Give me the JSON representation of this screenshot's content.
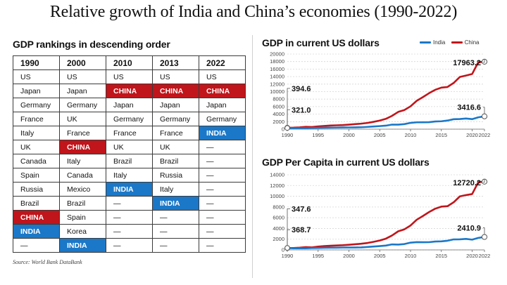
{
  "title": "Relative growth of India and China’s economies (1990-2022)",
  "colors": {
    "china": "#c0151b",
    "india": "#1b78c8"
  },
  "rankings": {
    "title": "GDP rankings in descending order",
    "columns": [
      "1990",
      "2000",
      "2010",
      "2013",
      "2022"
    ],
    "rows": [
      [
        "US",
        "US",
        "US",
        "US",
        "US"
      ],
      [
        "Japan",
        "Japan",
        "CHINA",
        "CHINA",
        "CHINA"
      ],
      [
        "Germany",
        "Germany",
        "Japan",
        "Japan",
        "Japan"
      ],
      [
        "France",
        "UK",
        "Germany",
        "Germany",
        "Germany"
      ],
      [
        "Italy",
        "France",
        "France",
        "France",
        "INDIA"
      ],
      [
        "UK",
        "CHINA",
        "UK",
        "UK",
        "—"
      ],
      [
        "Canada",
        "Italy",
        "Brazil",
        "Brazil",
        "—"
      ],
      [
        "Spain",
        "Canada",
        "Italy",
        "Russia",
        "—"
      ],
      [
        "Russia",
        "Mexico",
        "INDIA",
        "Italy",
        "—"
      ],
      [
        "Brazil",
        "Brazil",
        "—",
        "INDIA",
        "—"
      ],
      [
        "CHINA",
        "Spain",
        "—",
        "—",
        "—"
      ],
      [
        "INDIA",
        "Korea",
        "—",
        "—",
        "—"
      ],
      [
        "—",
        "INDIA",
        "—",
        "—",
        "—"
      ]
    ],
    "source": "Source: World Bank DataBank"
  },
  "legend": {
    "india": "India",
    "china": "China"
  },
  "chart_data": [
    {
      "type": "line",
      "title": "GDP in current US dollars",
      "xlim": [
        1990,
        2022
      ],
      "ylim": [
        0,
        20000
      ],
      "xticks": [
        "1990",
        "1995",
        "2000",
        "2005",
        "2010",
        "2015",
        "2020",
        "2022"
      ],
      "yticks": [
        "0",
        "2000",
        "4000",
        "6000",
        "8000",
        "10000",
        "12000",
        "14000",
        "16000",
        "18000",
        "20000"
      ],
      "x": [
        1990,
        1991,
        1992,
        1993,
        1994,
        1995,
        1996,
        1997,
        1998,
        1999,
        2000,
        2001,
        2002,
        2003,
        2004,
        2005,
        2006,
        2007,
        2008,
        2009,
        2010,
        2011,
        2012,
        2013,
        2014,
        2015,
        2016,
        2017,
        2018,
        2019,
        2020,
        2021,
        2022
      ],
      "series": [
        {
          "name": "China",
          "values": [
            394.6,
            413,
            492,
            617,
            564,
            734,
            864,
            961,
            1029,
            1094,
            1211,
            1339,
            1471,
            1660,
            1955,
            2286,
            2752,
            3550,
            4594,
            5102,
            6087,
            7552,
            8532,
            9570,
            10476,
            11062,
            11233,
            12310,
            13895,
            14280,
            14688,
            17820,
            17963.2
          ]
        },
        {
          "name": "India",
          "values": [
            321.0,
            270,
            288,
            279,
            327,
            360,
            392,
            415,
            421,
            458,
            468,
            485,
            515,
            607,
            709,
            820,
            940,
            1217,
            1199,
            1342,
            1676,
            1823,
            1828,
            1857,
            2039,
            2104,
            2295,
            2651,
            2703,
            2836,
            2672,
            3150,
            3416.6
          ]
        }
      ],
      "annotations": [
        {
          "label": "394.6",
          "series": "China",
          "x": 1990
        },
        {
          "label": "321.0",
          "series": "India",
          "x": 1990
        },
        {
          "label": "17963.2",
          "series": "China",
          "x": 2022
        },
        {
          "label": "3416.6",
          "series": "India",
          "x": 2022
        }
      ]
    },
    {
      "type": "line",
      "title": "GDP Per Capita in current US dollars",
      "xlim": [
        1990,
        2022
      ],
      "ylim": [
        0,
        14000
      ],
      "xticks": [
        "1990",
        "1995",
        "2000",
        "2005",
        "2010",
        "2015",
        "2020",
        "2022"
      ],
      "yticks": [
        "0",
        "2000",
        "4000",
        "6000",
        "8000",
        "10000",
        "12000",
        "14000"
      ],
      "x": [
        1990,
        1991,
        1992,
        1993,
        1994,
        1995,
        1996,
        1997,
        1998,
        1999,
        2000,
        2001,
        2002,
        2003,
        2004,
        2005,
        2006,
        2007,
        2008,
        2009,
        2010,
        2011,
        2012,
        2013,
        2014,
        2015,
        2016,
        2017,
        2018,
        2019,
        2020,
        2021,
        2022
      ],
      "series": [
        {
          "name": "China",
          "values": [
            347.6,
            355,
            419,
            521,
            472,
            610,
            709,
            782,
            829,
            874,
            959,
            1053,
            1149,
            1289,
            1509,
            1753,
            2099,
            2694,
            3468,
            3832,
            4550,
            5618,
            6317,
            7051,
            7678,
            8067,
            8148,
            8879,
            9977,
            10217,
            10408,
            12618,
            12720.2
          ]
        },
        {
          "name": "India",
          "values": [
            368.7,
            303,
            317,
            301,
            346,
            374,
            400,
            415,
            413,
            441,
            443,
            452,
            470,
            546,
            627,
            714,
            807,
            1028,
            991,
            1090,
            1351,
            1449,
            1434,
            1438,
            1560,
            1590,
            1714,
            1958,
            1974,
            2050,
            1913,
            2239,
            2410.9
          ]
        }
      ],
      "annotations": [
        {
          "label": "347.6",
          "series": "China",
          "x": 1990
        },
        {
          "label": "368.7",
          "series": "India",
          "x": 1990
        },
        {
          "label": "12720.2",
          "series": "China",
          "x": 2022
        },
        {
          "label": "2410.9",
          "series": "India",
          "x": 2022
        }
      ]
    }
  ]
}
